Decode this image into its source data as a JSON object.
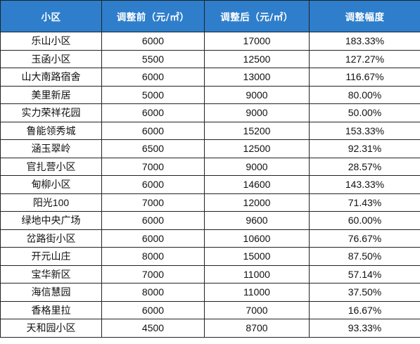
{
  "table": {
    "headers": [
      "小区",
      "调整前（元/㎡）",
      "调整后（元/㎡）",
      "调整幅度"
    ],
    "rows": [
      [
        "乐山小区",
        "6000",
        "17000",
        "183.33%"
      ],
      [
        "玉函小区",
        "5500",
        "12500",
        "127.27%"
      ],
      [
        "山大南路宿舍",
        "6000",
        "13000",
        "116.67%"
      ],
      [
        "美里新居",
        "5000",
        "9000",
        "80.00%"
      ],
      [
        "实力荣祥花园",
        "6000",
        "9000",
        "50.00%"
      ],
      [
        "鲁能领秀城",
        "6000",
        "15200",
        "153.33%"
      ],
      [
        "涵玉翠岭",
        "6500",
        "12500",
        "92.31%"
      ],
      [
        "官扎营小区",
        "7000",
        "9000",
        "28.57%"
      ],
      [
        "甸柳小区",
        "6000",
        "14600",
        "143.33%"
      ],
      [
        "阳光100",
        "7000",
        "12000",
        "71.43%"
      ],
      [
        "绿地中央广场",
        "6000",
        "9600",
        "60.00%"
      ],
      [
        "岔路街小区",
        "6000",
        "10600",
        "76.67%"
      ],
      [
        "开元山庄",
        "8000",
        "15000",
        "87.50%"
      ],
      [
        "宝华新区",
        "7000",
        "11000",
        "57.14%"
      ],
      [
        "海信慧园",
        "8000",
        "11000",
        "37.50%"
      ],
      [
        "香格里拉",
        "6000",
        "7000",
        "16.67%"
      ],
      [
        "天和园小区",
        "4500",
        "8700",
        "93.33%"
      ]
    ]
  },
  "colors": {
    "header_bg": "#2e7ecb",
    "header_text": "#ffffff",
    "border": "#222222"
  }
}
